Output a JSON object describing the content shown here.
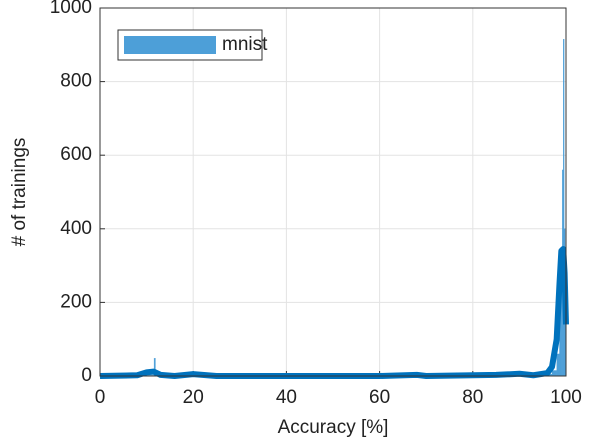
{
  "chart_data": {
    "type": "histogram",
    "xlabel": "Accuracy [%]",
    "ylabel": "# of trainings",
    "xlim": [
      0,
      100
    ],
    "ylim": [
      0,
      1000
    ],
    "xticks": [
      0,
      20,
      40,
      60,
      80,
      100
    ],
    "yticks": [
      0,
      200,
      400,
      600,
      800,
      1000
    ],
    "grid": true,
    "legend": "upper left",
    "series": [
      {
        "name": "mnist",
        "color": "#4d9fd8",
        "bins": [
          0,
          11.6,
          11.9,
          96,
          97,
          98,
          98.6,
          99,
          99.2,
          99.4,
          99.6,
          99.8,
          100
        ],
        "counts": [
          2,
          48,
          2,
          5,
          15,
          60,
          200,
          300,
          560,
          915,
          400,
          200
        ]
      }
    ],
    "density": {
      "color": "#0072bd",
      "x": [
        0,
        8,
        10,
        11.5,
        13,
        16,
        20,
        22,
        25,
        60,
        68,
        70,
        85,
        90,
        93,
        96,
        97,
        98,
        98.6,
        99,
        99.4,
        99.7,
        100
      ],
      "values": [
        0,
        2,
        10,
        12,
        3,
        0,
        5,
        3,
        0,
        0,
        3,
        0,
        3,
        6,
        2,
        8,
        25,
        100,
        250,
        340,
        345,
        280,
        140
      ]
    }
  }
}
